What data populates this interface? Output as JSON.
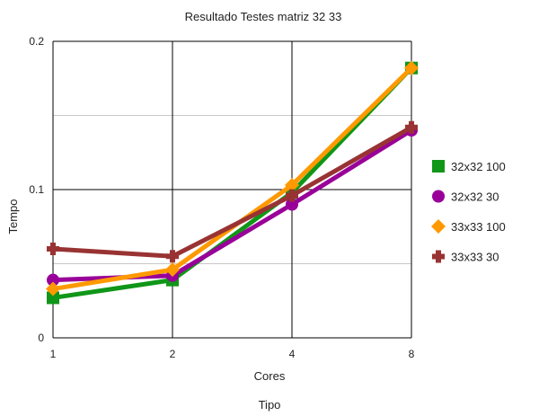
{
  "chart_data": {
    "type": "line",
    "title": "Resultado Testes matriz 32 33",
    "xlabel": "Cores",
    "footer_label": "Tipo",
    "ylabel": "Tempo",
    "categories": [
      "1",
      "2",
      "4",
      "8"
    ],
    "ylim": [
      0,
      0.2
    ],
    "y_ticks": [
      "0",
      "0.1",
      "0.2"
    ],
    "grid": true,
    "legend_position": "right",
    "series": [
      {
        "name": "32x32 100",
        "color": "#109618",
        "marker": "square",
        "values": [
          0.027,
          0.039,
          0.098,
          0.182
        ]
      },
      {
        "name": "32x32 30",
        "color": "#990099",
        "marker": "circle",
        "values": [
          0.039,
          0.042,
          0.09,
          0.14
        ]
      },
      {
        "name": "33x33 100",
        "color": "#ff9900",
        "marker": "diamond",
        "values": [
          0.033,
          0.046,
          0.103,
          0.182
        ]
      },
      {
        "name": "33x33 30",
        "color": "#993333",
        "marker": "cross",
        "values": [
          0.06,
          0.055,
          0.096,
          0.142
        ]
      }
    ]
  }
}
